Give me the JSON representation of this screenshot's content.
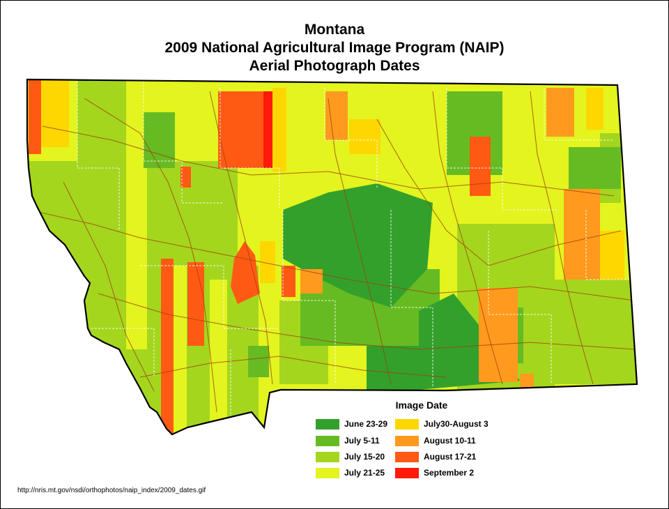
{
  "title": {
    "line1": "Montana",
    "line2": "2009 National Agricultural Image Program (NAIP)",
    "line3": "Aerial Photograph Dates"
  },
  "legend": {
    "title": "Image Date",
    "items": [
      {
        "label": "June 23-29",
        "color": "#33A02C"
      },
      {
        "label": "July 5-11",
        "color": "#66BB22"
      },
      {
        "label": "July 15-20",
        "color": "#A4D61E"
      },
      {
        "label": "July 21-25",
        "color": "#E3F41E"
      },
      {
        "label": "July30-August 3",
        "color": "#FFD700"
      },
      {
        "label": "August 10-11",
        "color": "#FF9A1E"
      },
      {
        "label": "August 17-21",
        "color": "#FF5A14"
      },
      {
        "label": "September 2",
        "color": "#FF1A0A"
      }
    ]
  },
  "source": "http://nris.mt.gov/nsdi/orthophotos/naip_index/2009_dates.gif"
}
